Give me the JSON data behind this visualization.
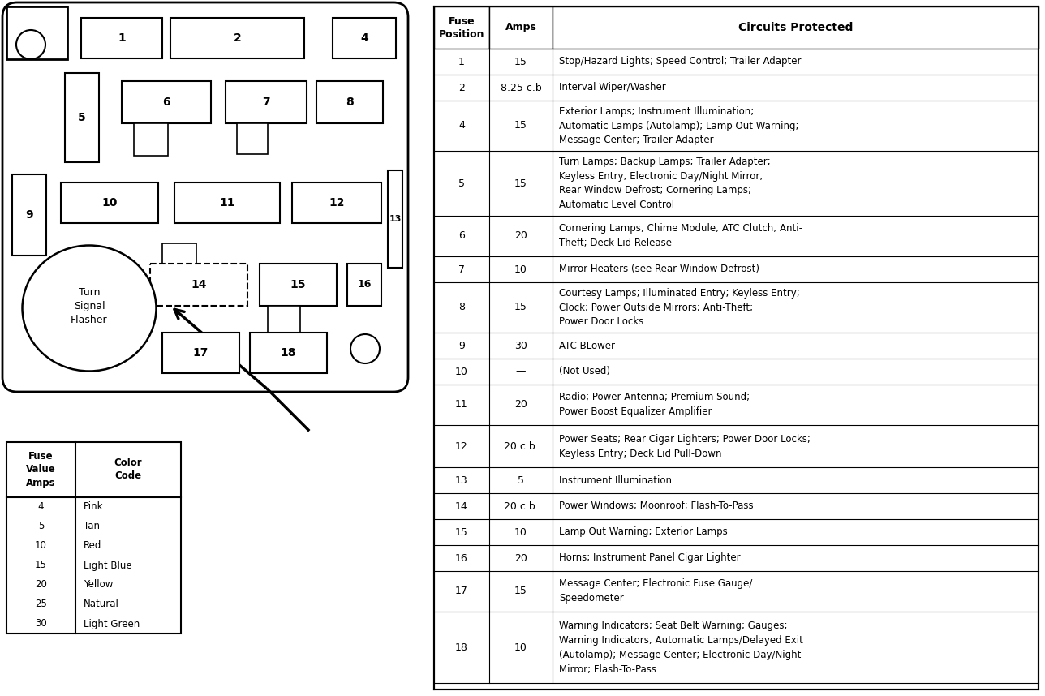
{
  "bg_color": "#ffffff",
  "color_table": {
    "amps": [
      "4",
      "5",
      "10",
      "15",
      "20",
      "25",
      "30"
    ],
    "colors": [
      "Pink",
      "Tan",
      "Red",
      "Light Blue",
      "Yellow",
      "Natural",
      "Light Green"
    ]
  },
  "main_table": {
    "rows": [
      [
        "1",
        "15",
        "Stop/Hazard Lights; Speed Control; Trailer Adapter"
      ],
      [
        "2",
        "8.25 c.b",
        "Interval Wiper/Washer"
      ],
      [
        "4",
        "15",
        "Exterior Lamps; Instrument Illumination;\nAutomatic Lamps (Autolamp); Lamp Out Warning;\nMessage Center; Trailer Adapter"
      ],
      [
        "5",
        "15",
        "Turn Lamps; Backup Lamps; Trailer Adapter;\nKeyless Entry; Electronic Day/Night Mirror;\nRear Window Defrost; Cornering Lamps;\nAutomatic Level Control"
      ],
      [
        "6",
        "20",
        "Cornering Lamps; Chime Module; ATC Clutch; Anti-\nTheft; Deck Lid Release"
      ],
      [
        "7",
        "10",
        "Mirror Heaters (see Rear Window Defrost)"
      ],
      [
        "8",
        "15",
        "Courtesy Lamps; Illuminated Entry; Keyless Entry;\nClock; Power Outside Mirrors; Anti-Theft;\nPower Door Locks"
      ],
      [
        "9",
        "30",
        "ATC BLower"
      ],
      [
        "10",
        "—",
        "(Not Used)"
      ],
      [
        "11",
        "20",
        "Radio; Power Antenna; Premium Sound;\nPower Boost Equalizer Amplifier"
      ],
      [
        "12",
        "20 c.b.",
        "Power Seats; Rear Cigar Lighters; Power Door Locks;\nKeyless Entry; Deck Lid Pull-Down"
      ],
      [
        "13",
        "5",
        "Instrument Illumination"
      ],
      [
        "14",
        "20 c.b.",
        "Power Windows; Moonroof; Flash-To-Pass"
      ],
      [
        "15",
        "10",
        "Lamp Out Warning; Exterior Lamps"
      ],
      [
        "16",
        "20",
        "Horns; Instrument Panel Cigar Lighter"
      ],
      [
        "17",
        "15",
        "Message Center; Electronic Fuse Gauge/\nSpeedometer"
      ],
      [
        "18",
        "10",
        "Warning Indicators; Seat Belt Warning; Gauges;\nWarning Indicators; Automatic Lamps/Delayed Exit\n(Autolamp); Message Center; Electronic Day/Night\nMirror; Flash-To-Pass"
      ]
    ]
  }
}
